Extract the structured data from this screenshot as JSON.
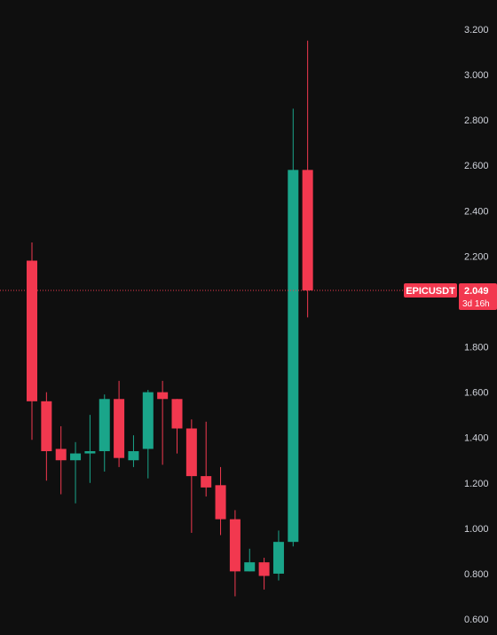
{
  "chart_data": {
    "type": "candlestick",
    "symbol": "EPICUSDT",
    "last_price": "2.049",
    "countdown": "3d 16h",
    "y_ticks": [
      "3.200",
      "3.000",
      "2.800",
      "2.600",
      "2.400",
      "2.200",
      "1.800",
      "1.600",
      "1.400",
      "1.200",
      "1.000",
      "0.800",
      "0.600"
    ],
    "ylim": [
      0.6,
      3.2
    ],
    "grid": false,
    "colors": {
      "background": "#0f0f0f",
      "up": "#1aa58a",
      "down": "#f2384f",
      "axis_text": "#d1d4dc",
      "price_line": "#f2384f",
      "label_text": "#ffffff"
    },
    "candles": [
      {
        "open": 2.18,
        "high": 2.26,
        "low": 1.39,
        "close": 1.56
      },
      {
        "open": 1.56,
        "high": 1.6,
        "low": 1.21,
        "close": 1.34
      },
      {
        "open": 1.35,
        "high": 1.45,
        "low": 1.15,
        "close": 1.3
      },
      {
        "open": 1.3,
        "high": 1.38,
        "low": 1.11,
        "close": 1.33
      },
      {
        "open": 1.33,
        "high": 1.5,
        "low": 1.2,
        "close": 1.34
      },
      {
        "open": 1.34,
        "high": 1.59,
        "low": 1.25,
        "close": 1.57
      },
      {
        "open": 1.57,
        "high": 1.65,
        "low": 1.27,
        "close": 1.31
      },
      {
        "open": 1.3,
        "high": 1.41,
        "low": 1.27,
        "close": 1.34
      },
      {
        "open": 1.35,
        "high": 1.61,
        "low": 1.22,
        "close": 1.6
      },
      {
        "open": 1.6,
        "high": 1.65,
        "low": 1.28,
        "close": 1.57
      },
      {
        "open": 1.57,
        "high": 1.57,
        "low": 1.33,
        "close": 1.44
      },
      {
        "open": 1.44,
        "high": 1.48,
        "low": 0.98,
        "close": 1.23
      },
      {
        "open": 1.23,
        "high": 1.47,
        "low": 1.14,
        "close": 1.18
      },
      {
        "open": 1.19,
        "high": 1.27,
        "low": 0.97,
        "close": 1.04
      },
      {
        "open": 1.04,
        "high": 1.08,
        "low": 0.7,
        "close": 0.81
      },
      {
        "open": 0.81,
        "high": 0.91,
        "low": 0.81,
        "close": 0.85
      },
      {
        "open": 0.85,
        "high": 0.87,
        "low": 0.73,
        "close": 0.79
      },
      {
        "open": 0.8,
        "high": 0.99,
        "low": 0.77,
        "close": 0.94
      },
      {
        "open": 0.94,
        "high": 2.85,
        "low": 0.92,
        "close": 2.58
      },
      {
        "open": 2.58,
        "high": 3.15,
        "low": 1.93,
        "close": 2.049
      }
    ]
  }
}
